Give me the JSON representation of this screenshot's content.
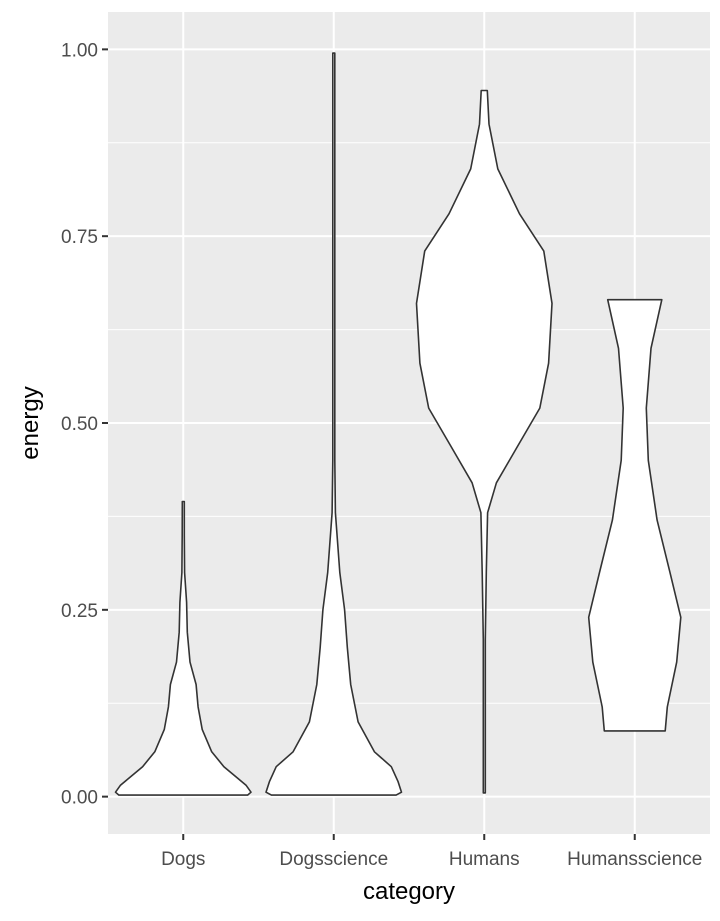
{
  "chart_data": {
    "type": "violin",
    "xlabel": "category",
    "ylabel": "energy",
    "categories": [
      "Dogs",
      "Dogsscience",
      "Humans",
      "Humansscience"
    ],
    "ylim": [
      -0.05,
      1.05
    ],
    "y_ticks": [
      0.0,
      0.25,
      0.5,
      0.75,
      1.0
    ],
    "y_tick_labels": [
      "0.00",
      "0.25",
      "0.50",
      "0.75",
      "1.00"
    ],
    "grid": true,
    "panel_background": "#ebebeb",
    "violin_fill": "#ffffff",
    "violin_outline": "#333333",
    "violins": [
      {
        "category": "Dogs",
        "min": 0.002,
        "max": 0.395,
        "profile": [
          [
            0.002,
            0.95
          ],
          [
            0.006,
            1.0
          ],
          [
            0.015,
            0.93
          ],
          [
            0.025,
            0.8
          ],
          [
            0.04,
            0.6
          ],
          [
            0.06,
            0.42
          ],
          [
            0.09,
            0.28
          ],
          [
            0.12,
            0.22
          ],
          [
            0.15,
            0.19
          ],
          [
            0.18,
            0.1
          ],
          [
            0.22,
            0.06
          ],
          [
            0.26,
            0.05
          ],
          [
            0.3,
            0.02
          ],
          [
            0.35,
            0.016
          ],
          [
            0.395,
            0.012
          ]
        ]
      },
      {
        "category": "Dogsscience",
        "min": 0.002,
        "max": 0.995,
        "profile": [
          [
            0.002,
            0.92
          ],
          [
            0.006,
            1.0
          ],
          [
            0.02,
            0.95
          ],
          [
            0.04,
            0.85
          ],
          [
            0.06,
            0.6
          ],
          [
            0.1,
            0.36
          ],
          [
            0.15,
            0.25
          ],
          [
            0.2,
            0.2
          ],
          [
            0.25,
            0.16
          ],
          [
            0.3,
            0.09
          ],
          [
            0.38,
            0.025
          ],
          [
            0.45,
            0.013
          ],
          [
            0.6,
            0.013
          ],
          [
            0.8,
            0.012
          ],
          [
            0.93,
            0.012
          ],
          [
            0.995,
            0.012
          ]
        ]
      },
      {
        "category": "Humans",
        "min": 0.005,
        "max": 0.945,
        "profile": [
          [
            0.005,
            0.012
          ],
          [
            0.1,
            0.012
          ],
          [
            0.21,
            0.014
          ],
          [
            0.3,
            0.03
          ],
          [
            0.38,
            0.05
          ],
          [
            0.42,
            0.18
          ],
          [
            0.47,
            0.5
          ],
          [
            0.52,
            0.82
          ],
          [
            0.58,
            0.95
          ],
          [
            0.66,
            1.0
          ],
          [
            0.73,
            0.88
          ],
          [
            0.78,
            0.52
          ],
          [
            0.84,
            0.2
          ],
          [
            0.9,
            0.07
          ],
          [
            0.945,
            0.045
          ]
        ]
      },
      {
        "category": "Humansscience",
        "min": 0.088,
        "max": 0.665,
        "profile": [
          [
            0.088,
            0.45
          ],
          [
            0.12,
            0.48
          ],
          [
            0.18,
            0.62
          ],
          [
            0.24,
            0.68
          ],
          [
            0.3,
            0.52
          ],
          [
            0.37,
            0.33
          ],
          [
            0.45,
            0.2
          ],
          [
            0.52,
            0.17
          ],
          [
            0.6,
            0.24
          ],
          [
            0.665,
            0.4
          ]
        ]
      }
    ]
  }
}
